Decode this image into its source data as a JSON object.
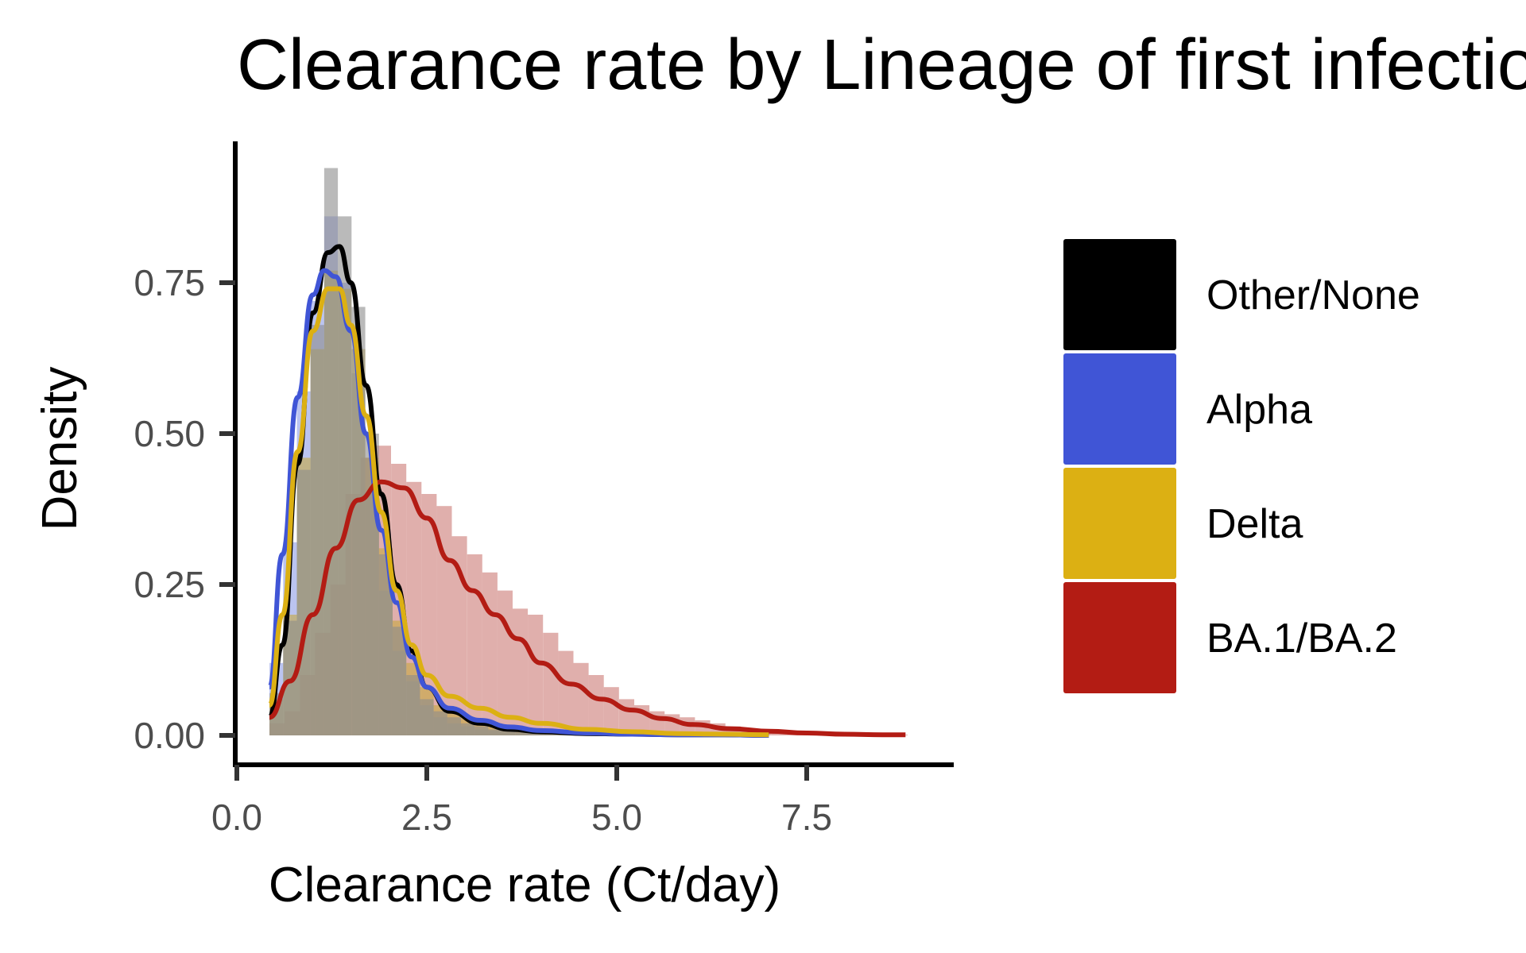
{
  "chart_data": {
    "type": "histogram-density",
    "title": "Clearance rate by Lineage of first infection",
    "xlabel": "Clearance rate (Ct/day)",
    "ylabel": "Density",
    "xlim": [
      0,
      9.4
    ],
    "ylim": [
      -0.05,
      0.98
    ],
    "x_ticks": [
      {
        "value": 0.0,
        "label": "0.0"
      },
      {
        "value": 2.5,
        "label": "2.5"
      },
      {
        "value": 5.0,
        "label": "5.0"
      },
      {
        "value": 7.5,
        "label": "7.5"
      }
    ],
    "y_ticks": [
      {
        "value": 0.0,
        "label": "0.00"
      },
      {
        "value": 0.25,
        "label": "0.25"
      },
      {
        "value": 0.5,
        "label": "0.50"
      },
      {
        "value": 0.75,
        "label": "0.75"
      }
    ],
    "grid": false,
    "legend_position": "right",
    "series": [
      {
        "name": "Other/None",
        "color": "#000000",
        "hist_color": "#8c8c8c",
        "bin_width": 0.18,
        "bin_start": 0.43,
        "hist": [
          0.07,
          0.19,
          0.44,
          0.68,
          0.94,
          0.86,
          0.71,
          0.5,
          0.3,
          0.18,
          0.1,
          0.06,
          0.04,
          0.03,
          0.02,
          0.015,
          0.01,
          0.008,
          0.006,
          0.005,
          0.004,
          0.003,
          0.002,
          0.002,
          0.001
        ],
        "density_x": [
          0.43,
          0.6,
          0.8,
          1.0,
          1.2,
          1.35,
          1.5,
          1.7,
          1.9,
          2.1,
          2.3,
          2.5,
          2.8,
          3.2,
          3.6,
          4.0,
          4.6,
          5.2,
          5.8,
          6.4,
          7.0
        ],
        "density_y": [
          0.03,
          0.15,
          0.45,
          0.7,
          0.8,
          0.81,
          0.75,
          0.58,
          0.4,
          0.25,
          0.14,
          0.08,
          0.04,
          0.02,
          0.01,
          0.006,
          0.003,
          0.002,
          0.001,
          0.001,
          0.0
        ]
      },
      {
        "name": "Alpha",
        "color": "#4055d6",
        "hist_color": "#8e9de6",
        "bin_width": 0.18,
        "bin_start": 0.43,
        "hist": [
          0.12,
          0.32,
          0.57,
          0.72,
          0.86,
          0.75,
          0.6,
          0.4,
          0.24,
          0.14,
          0.09,
          0.05,
          0.03,
          0.02,
          0.015,
          0.01,
          0.008,
          0.006,
          0.004,
          0.003,
          0.002,
          0.002,
          0.001
        ],
        "density_x": [
          0.43,
          0.6,
          0.8,
          1.0,
          1.15,
          1.3,
          1.5,
          1.7,
          1.9,
          2.1,
          2.3,
          2.5,
          2.8,
          3.2,
          3.6,
          4.0,
          4.6,
          5.2,
          5.8,
          6.4,
          7.0
        ],
        "density_y": [
          0.08,
          0.3,
          0.56,
          0.73,
          0.77,
          0.76,
          0.67,
          0.5,
          0.34,
          0.22,
          0.13,
          0.08,
          0.045,
          0.025,
          0.014,
          0.008,
          0.004,
          0.002,
          0.001,
          0.001,
          0.0
        ]
      },
      {
        "name": "Delta",
        "color": "#dcb013",
        "hist_color": "#c4a940",
        "bin_width": 0.18,
        "bin_start": 0.43,
        "hist": [
          0.06,
          0.2,
          0.46,
          0.64,
          0.77,
          0.74,
          0.64,
          0.46,
          0.31,
          0.19,
          0.12,
          0.08,
          0.05,
          0.04,
          0.03,
          0.025,
          0.02,
          0.015,
          0.01,
          0.008,
          0.006,
          0.004,
          0.003,
          0.002,
          0.001
        ],
        "density_x": [
          0.43,
          0.6,
          0.8,
          1.0,
          1.2,
          1.35,
          1.5,
          1.7,
          1.9,
          2.1,
          2.3,
          2.5,
          2.8,
          3.2,
          3.6,
          4.0,
          4.6,
          5.2,
          5.8,
          6.4,
          7.0
        ],
        "density_y": [
          0.05,
          0.2,
          0.47,
          0.67,
          0.74,
          0.74,
          0.68,
          0.53,
          0.37,
          0.24,
          0.15,
          0.1,
          0.065,
          0.045,
          0.03,
          0.02,
          0.01,
          0.006,
          0.003,
          0.002,
          0.001
        ]
      },
      {
        "name": "BA.1/BA.2",
        "color": "#b31c14",
        "hist_color": "#c76e67",
        "bin_width": 0.2,
        "bin_start": 0.43,
        "hist": [
          0.02,
          0.04,
          0.1,
          0.17,
          0.25,
          0.4,
          0.46,
          0.48,
          0.45,
          0.42,
          0.4,
          0.38,
          0.33,
          0.3,
          0.27,
          0.24,
          0.21,
          0.2,
          0.17,
          0.14,
          0.12,
          0.1,
          0.08,
          0.06,
          0.05,
          0.04,
          0.035,
          0.03,
          0.025,
          0.02,
          0.015,
          0.012,
          0.01,
          0.008,
          0.006,
          0.005,
          0.004,
          0.003,
          0.003,
          0.002,
          0.002,
          0.001
        ],
        "density_x": [
          0.43,
          0.7,
          1.0,
          1.3,
          1.6,
          1.9,
          2.2,
          2.5,
          2.8,
          3.1,
          3.4,
          3.7,
          4.0,
          4.4,
          4.8,
          5.2,
          5.6,
          6.0,
          6.5,
          7.0,
          7.5,
          8.0,
          8.5,
          8.8
        ],
        "density_y": [
          0.03,
          0.09,
          0.2,
          0.31,
          0.39,
          0.42,
          0.41,
          0.36,
          0.29,
          0.24,
          0.2,
          0.16,
          0.12,
          0.085,
          0.06,
          0.042,
          0.028,
          0.018,
          0.011,
          0.007,
          0.004,
          0.002,
          0.001,
          0.001
        ]
      }
    ]
  }
}
